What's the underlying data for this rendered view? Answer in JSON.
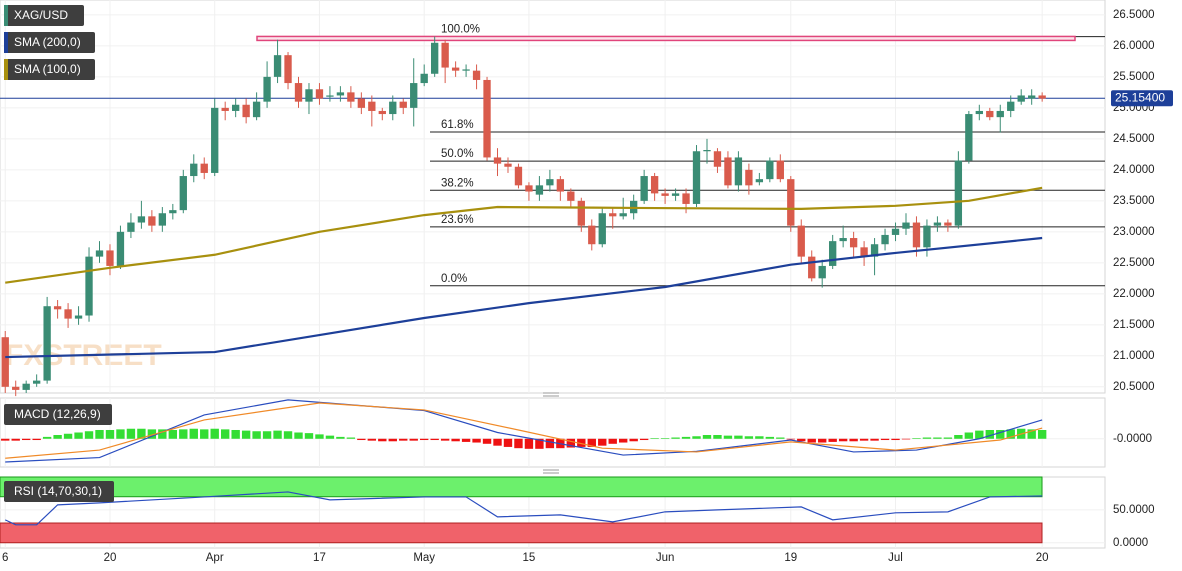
{
  "chart_data": [
    {
      "type": "candlestick",
      "series": [
        {
          "name": "XAG/USD",
          "color": "#3a8c74",
          "down_color": "#d95b4c",
          "open": [
            21.3,
            20.5,
            20.45,
            20.55,
            20.6,
            21.8,
            21.75,
            21.6,
            21.65,
            22.6,
            22.7,
            22.45,
            23.0,
            23.15,
            23.25,
            23.1,
            23.3,
            23.35,
            23.9,
            24.1,
            23.95,
            25.0,
            24.95,
            25.05,
            24.85,
            25.1,
            25.5,
            25.85,
            25.4,
            25.1,
            25.3,
            25.18,
            25.2,
            25.25,
            25.15,
            25.1,
            24.95,
            24.9,
            25.1,
            25.0,
            25.4,
            25.55,
            26.05,
            25.65,
            25.6,
            25.6,
            25.45,
            24.2,
            24.1,
            24.05,
            23.75,
            23.6,
            23.75,
            23.85,
            23.65,
            23.5,
            23.1,
            22.8,
            23.3,
            23.25,
            23.3,
            23.5,
            23.9,
            23.62,
            23.58,
            23.62,
            23.45,
            24.3,
            24.3,
            24.2,
            23.75,
            24.0,
            23.8,
            23.85,
            24.15,
            23.85,
            23.1,
            22.6,
            22.25,
            22.45,
            22.85,
            22.9,
            22.75,
            22.6,
            22.8,
            22.95,
            23.05,
            23.15,
            22.75,
            23.1,
            23.15,
            23.1,
            24.15,
            24.9,
            24.95,
            24.85,
            24.95,
            25.1,
            25.15,
            25.2
          ],
          "high": [
            21.4,
            20.6,
            20.6,
            20.7,
            21.95,
            21.9,
            21.85,
            21.8,
            22.75,
            22.85,
            22.8,
            23.1,
            23.3,
            23.5,
            23.35,
            23.4,
            23.45,
            24.0,
            24.25,
            24.2,
            25.15,
            25.1,
            25.15,
            25.15,
            25.25,
            25.75,
            26.1,
            25.9,
            25.5,
            25.4,
            25.4,
            25.35,
            25.35,
            25.35,
            25.25,
            25.2,
            25.0,
            25.2,
            25.15,
            25.8,
            25.7,
            26.15,
            26.1,
            25.75,
            25.7,
            25.7,
            25.5,
            24.35,
            24.2,
            24.1,
            23.8,
            23.9,
            24.0,
            23.9,
            23.7,
            23.55,
            23.2,
            23.4,
            23.4,
            23.55,
            23.6,
            24.0,
            23.95,
            23.7,
            23.7,
            23.7,
            24.4,
            24.5,
            24.35,
            24.3,
            24.3,
            24.1,
            23.95,
            24.2,
            24.25,
            23.9,
            23.2,
            22.7,
            22.55,
            22.95,
            23.1,
            23.0,
            22.85,
            22.9,
            23.05,
            23.15,
            23.3,
            23.25,
            23.2,
            23.25,
            23.2,
            24.3,
            24.95,
            25.05,
            25.0,
            25.05,
            25.2,
            25.3,
            25.3,
            25.25
          ],
          "low": [
            20.4,
            20.35,
            20.4,
            20.5,
            20.55,
            21.6,
            21.45,
            21.5,
            21.55,
            22.5,
            22.3,
            22.4,
            22.9,
            23.05,
            23.0,
            23.0,
            23.2,
            23.3,
            23.8,
            23.85,
            23.9,
            24.8,
            24.85,
            24.75,
            24.8,
            25.0,
            25.4,
            25.3,
            25.0,
            24.9,
            25.05,
            25.1,
            25.1,
            25.0,
            24.9,
            24.7,
            24.8,
            24.8,
            24.9,
            24.7,
            25.35,
            25.5,
            25.4,
            25.5,
            25.5,
            25.3,
            24.15,
            23.9,
            23.95,
            23.7,
            23.5,
            23.5,
            23.65,
            23.5,
            23.4,
            23.0,
            22.7,
            22.75,
            23.05,
            23.2,
            23.2,
            23.45,
            23.5,
            23.45,
            23.5,
            23.3,
            23.4,
            24.1,
            23.95,
            23.7,
            23.65,
            23.6,
            23.75,
            23.8,
            23.8,
            23.0,
            22.5,
            22.2,
            22.1,
            22.4,
            22.75,
            22.6,
            22.45,
            22.3,
            22.7,
            22.85,
            22.95,
            22.6,
            22.6,
            23.0,
            23.0,
            23.05,
            24.1,
            24.8,
            24.8,
            24.6,
            24.85,
            25.05,
            25.05,
            25.1
          ],
          "close": [
            20.5,
            20.45,
            20.55,
            20.6,
            21.8,
            21.75,
            21.6,
            21.65,
            22.6,
            22.7,
            22.45,
            23.0,
            23.15,
            23.25,
            23.1,
            23.3,
            23.35,
            23.9,
            24.1,
            23.95,
            25.0,
            24.95,
            25.05,
            24.85,
            25.1,
            25.5,
            25.85,
            25.4,
            25.1,
            25.3,
            25.15,
            25.2,
            25.25,
            25.1,
            25.0,
            24.95,
            24.9,
            25.1,
            25.0,
            25.4,
            25.55,
            26.05,
            25.65,
            25.6,
            25.62,
            25.45,
            24.2,
            24.1,
            24.05,
            23.75,
            23.65,
            23.75,
            23.85,
            23.65,
            23.5,
            23.1,
            22.8,
            23.3,
            23.25,
            23.3,
            23.5,
            23.9,
            23.62,
            23.58,
            23.62,
            23.45,
            24.3,
            24.32,
            24.05,
            23.75,
            24.2,
            23.75,
            23.85,
            24.15,
            23.85,
            23.1,
            22.6,
            22.25,
            22.45,
            22.85,
            22.9,
            22.75,
            22.6,
            22.8,
            22.95,
            23.05,
            23.15,
            22.75,
            23.1,
            23.15,
            23.1,
            24.15,
            24.9,
            24.95,
            24.85,
            24.95,
            25.1,
            25.2,
            25.2,
            25.15
          ]
        },
        {
          "name": "SMA (200,0)",
          "color": "#1d3f99",
          "x": [
            0,
            20,
            40,
            50,
            63,
            75,
            85,
            99
          ],
          "values": [
            20.98,
            21.06,
            21.61,
            21.85,
            22.11,
            22.47,
            22.66,
            22.9
          ]
        },
        {
          "name": "SMA (100,0)",
          "color": "#a8900e",
          "x": [
            0,
            10,
            20,
            30,
            40,
            47,
            56,
            76,
            85,
            92,
            99
          ],
          "values": [
            22.18,
            22.42,
            22.63,
            23.0,
            23.27,
            23.4,
            23.39,
            23.37,
            23.42,
            23.5,
            23.71
          ]
        }
      ],
      "fib_levels": [
        {
          "label": "100.0%",
          "value": 26.15
        },
        {
          "label": "61.8%",
          "value": 24.61
        },
        {
          "label": "50.0%",
          "value": 24.14
        },
        {
          "label": "38.2%",
          "value": 23.67
        },
        {
          "label": "23.6%",
          "value": 23.08
        },
        {
          "label": "0.0%",
          "value": 22.13
        }
      ],
      "resistance": {
        "value": 26.12,
        "color": "#e0457b"
      },
      "last_price": {
        "value": 25.154,
        "label": "25.15400",
        "color": "#1d3f99"
      },
      "watermark": "FXSTREET",
      "xlim": [
        -0.5,
        105
      ],
      "xticks": [
        {
          "value": 0,
          "label": "6"
        },
        {
          "value": 10,
          "label": "20"
        },
        {
          "value": 20,
          "label": "Apr"
        },
        {
          "value": 30,
          "label": "17"
        },
        {
          "value": 40,
          "label": "May"
        },
        {
          "value": 50,
          "label": "15"
        },
        {
          "value": 63,
          "label": "Jun"
        },
        {
          "value": 75,
          "label": "19"
        },
        {
          "value": 85,
          "label": "Jul"
        },
        {
          "value": 99,
          "label": "20"
        }
      ],
      "ylim": [
        20.4,
        26.74
      ],
      "yticks": [
        {
          "value": 20.5,
          "label": "20.5000"
        },
        {
          "value": 21,
          "label": "21.0000"
        },
        {
          "value": 21.5,
          "label": "21.5000"
        },
        {
          "value": 22,
          "label": "22.0000"
        },
        {
          "value": 22.5,
          "label": "22.5000"
        },
        {
          "value": 23,
          "label": "23.0000"
        },
        {
          "value": 23.5,
          "label": "23.5000"
        },
        {
          "value": 24,
          "label": "24.0000"
        },
        {
          "value": 24.5,
          "label": "24.5000"
        },
        {
          "value": 25,
          "label": "25.0000"
        },
        {
          "value": 25.5,
          "label": "25.5000"
        },
        {
          "value": 26,
          "label": "26.0000"
        },
        {
          "value": 26.5,
          "label": "26.5000"
        }
      ],
      "grid": true
    },
    {
      "type": "macd",
      "title": "MACD (12,26,9)",
      "histogram": {
        "up_color": "#33dd33",
        "down_color": "#ee1111",
        "values": [
          -0.03,
          -0.03,
          -0.02,
          -0.02,
          0.03,
          0.06,
          0.08,
          0.1,
          0.12,
          0.14,
          0.14,
          0.15,
          0.16,
          0.16,
          0.15,
          0.15,
          0.14,
          0.15,
          0.16,
          0.15,
          0.16,
          0.15,
          0.14,
          0.13,
          0.12,
          0.12,
          0.13,
          0.12,
          0.1,
          0.09,
          0.07,
          0.05,
          0.03,
          0.02,
          -0.02,
          -0.03,
          -0.04,
          -0.04,
          -0.03,
          -0.03,
          -0.02,
          -0.02,
          -0.03,
          -0.04,
          -0.05,
          -0.06,
          -0.08,
          -0.11,
          -0.13,
          -0.15,
          -0.16,
          -0.16,
          -0.15,
          -0.15,
          -0.14,
          -0.13,
          -0.13,
          -0.11,
          -0.08,
          -0.06,
          -0.04,
          -0.02,
          0.01,
          0.01,
          0.02,
          0.03,
          0.04,
          0.06,
          0.06,
          0.05,
          0.05,
          0.04,
          0.04,
          0.03,
          0.02,
          -0.01,
          -0.04,
          -0.06,
          -0.06,
          -0.05,
          -0.04,
          -0.04,
          -0.03,
          -0.03,
          -0.02,
          -0.02,
          -0.01,
          0.01,
          0.02,
          0.02,
          0.02,
          0.06,
          0.1,
          0.13,
          0.14,
          0.14,
          0.15,
          0.16,
          0.15,
          0.14
        ]
      },
      "lines": [
        {
          "color": "#2a4dbf",
          "x": [
            0,
            9,
            19,
            27,
            40,
            47,
            59,
            66,
            75,
            81,
            87,
            93,
            99
          ],
          "values": [
            -0.37,
            -0.3,
            0.38,
            0.62,
            0.45,
            0.1,
            -0.26,
            -0.2,
            -0.02,
            -0.21,
            -0.18,
            0.0,
            0.3
          ]
        },
        {
          "color": "#f08a28",
          "x": [
            0,
            9,
            19,
            30,
            40,
            49,
            57,
            66,
            75,
            85,
            95,
            99
          ],
          "values": [
            -0.31,
            -0.18,
            0.3,
            0.57,
            0.46,
            0.14,
            -0.15,
            -0.21,
            -0.05,
            -0.18,
            -0.02,
            0.17
          ]
        }
      ],
      "ylim": [
        -0.45,
        0.65
      ],
      "yticks": [
        {
          "value": 0,
          "label": "-0.0000"
        }
      ]
    },
    {
      "type": "rsi",
      "title": "RSI (14,70,30,1)",
      "color": "#2a4dbf",
      "x": [
        0,
        1,
        3,
        5,
        9,
        19,
        27,
        31,
        40,
        44,
        47,
        53,
        58,
        63,
        68,
        76,
        79,
        85,
        90,
        94,
        99
      ],
      "values": [
        34.8,
        27.3,
        27.3,
        57.6,
        60.6,
        69.7,
        77.3,
        65.2,
        69.7,
        69.7,
        39.4,
        42.4,
        31.8,
        47,
        50,
        54.5,
        34.8,
        45.5,
        47,
        69.7,
        71.2
      ],
      "overbought": 70,
      "oversold": 30,
      "overbought_color": "#6cf06c",
      "oversold_color": "#f0626a",
      "ylim": [
        -8,
        100
      ],
      "yticks": [
        {
          "value": 50,
          "label": "50.0000"
        },
        {
          "value": 0,
          "label": "0.0000"
        }
      ]
    }
  ]
}
